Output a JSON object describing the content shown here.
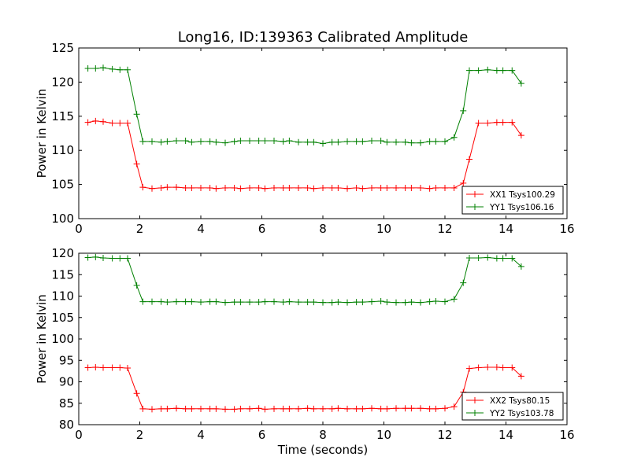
{
  "chart_data": [
    {
      "type": "line",
      "title": "Long16, ID:139363 Calibrated Amplitude",
      "xlabel": "",
      "ylabel": "Power in Kelvin",
      "xlim": [
        0,
        16
      ],
      "ylim": [
        100,
        125
      ],
      "xticks": [
        0,
        2,
        4,
        6,
        8,
        10,
        12,
        14,
        16
      ],
      "yticks": [
        100,
        105,
        110,
        115,
        120,
        125
      ],
      "legend_position": "lower-right",
      "x": [
        0.3,
        0.55,
        0.8,
        1.1,
        1.35,
        1.6,
        1.9,
        2.1,
        2.4,
        2.7,
        2.9,
        3.2,
        3.5,
        3.7,
        4.0,
        4.3,
        4.5,
        4.8,
        5.1,
        5.3,
        5.6,
        5.9,
        6.1,
        6.4,
        6.7,
        6.9,
        7.2,
        7.5,
        7.7,
        8.0,
        8.3,
        8.5,
        8.8,
        9.1,
        9.3,
        9.6,
        9.9,
        10.1,
        10.4,
        10.7,
        10.9,
        11.2,
        11.5,
        11.7,
        12.0,
        12.3,
        12.6,
        12.8,
        13.1,
        13.4,
        13.7,
        13.9,
        14.2,
        14.5
      ],
      "series": [
        {
          "name": "XX1 Tsys100.29",
          "color": "#ff0000",
          "values": [
            114.1,
            114.3,
            114.2,
            114.0,
            114.0,
            114.0,
            108.0,
            104.6,
            104.4,
            104.5,
            104.6,
            104.6,
            104.5,
            104.5,
            104.5,
            104.5,
            104.4,
            104.5,
            104.5,
            104.4,
            104.5,
            104.5,
            104.4,
            104.5,
            104.5,
            104.5,
            104.5,
            104.5,
            104.4,
            104.5,
            104.5,
            104.5,
            104.4,
            104.5,
            104.4,
            104.5,
            104.5,
            104.5,
            104.5,
            104.5,
            104.5,
            104.5,
            104.4,
            104.5,
            104.5,
            104.5,
            105.2,
            108.7,
            114.0,
            114.0,
            114.1,
            114.1,
            114.1,
            112.2
          ]
        },
        {
          "name": "YY1 Tsys106.16",
          "color": "#008000",
          "values": [
            122.0,
            122.0,
            122.1,
            121.9,
            121.8,
            121.8,
            115.3,
            111.3,
            111.3,
            111.2,
            111.3,
            111.4,
            111.4,
            111.2,
            111.3,
            111.3,
            111.2,
            111.1,
            111.3,
            111.4,
            111.4,
            111.4,
            111.4,
            111.4,
            111.3,
            111.4,
            111.2,
            111.2,
            111.2,
            111.0,
            111.2,
            111.2,
            111.3,
            111.3,
            111.3,
            111.4,
            111.4,
            111.2,
            111.2,
            111.2,
            111.1,
            111.1,
            111.3,
            111.3,
            111.3,
            111.9,
            115.8,
            121.7,
            121.7,
            121.8,
            121.7,
            121.7,
            121.7,
            119.8
          ]
        }
      ]
    },
    {
      "type": "line",
      "title": "",
      "xlabel": "Time (seconds)",
      "ylabel": "Power in Kelvin",
      "xlim": [
        0,
        16
      ],
      "ylim": [
        80,
        120
      ],
      "xticks": [
        0,
        2,
        4,
        6,
        8,
        10,
        12,
        14,
        16
      ],
      "yticks": [
        80,
        85,
        90,
        95,
        100,
        105,
        110,
        115,
        120
      ],
      "legend_position": "lower-right",
      "x": [
        0.3,
        0.55,
        0.8,
        1.1,
        1.35,
        1.6,
        1.9,
        2.1,
        2.4,
        2.7,
        2.9,
        3.2,
        3.5,
        3.7,
        4.0,
        4.3,
        4.5,
        4.8,
        5.1,
        5.3,
        5.6,
        5.9,
        6.1,
        6.4,
        6.7,
        6.9,
        7.2,
        7.5,
        7.7,
        8.0,
        8.3,
        8.5,
        8.8,
        9.1,
        9.3,
        9.6,
        9.9,
        10.1,
        10.4,
        10.7,
        10.9,
        11.2,
        11.5,
        11.7,
        12.0,
        12.3,
        12.6,
        12.8,
        13.1,
        13.4,
        13.7,
        13.9,
        14.2,
        14.5
      ],
      "series": [
        {
          "name": "XX2 Tsys80.15",
          "color": "#ff0000",
          "values": [
            93.3,
            93.4,
            93.3,
            93.3,
            93.3,
            93.2,
            87.3,
            83.7,
            83.6,
            83.7,
            83.7,
            83.8,
            83.7,
            83.7,
            83.7,
            83.7,
            83.7,
            83.6,
            83.6,
            83.7,
            83.7,
            83.8,
            83.6,
            83.7,
            83.7,
            83.7,
            83.7,
            83.8,
            83.7,
            83.7,
            83.7,
            83.8,
            83.7,
            83.7,
            83.7,
            83.8,
            83.7,
            83.7,
            83.8,
            83.8,
            83.8,
            83.8,
            83.7,
            83.7,
            83.8,
            84.2,
            87.6,
            93.1,
            93.3,
            93.4,
            93.4,
            93.3,
            93.3,
            91.3
          ]
        },
        {
          "name": "YY2 Tsys103.78",
          "color": "#008000",
          "values": [
            119.0,
            119.1,
            118.9,
            118.8,
            118.8,
            118.8,
            112.5,
            108.7,
            108.7,
            108.7,
            108.6,
            108.7,
            108.7,
            108.7,
            108.6,
            108.7,
            108.7,
            108.5,
            108.6,
            108.6,
            108.6,
            108.6,
            108.7,
            108.7,
            108.6,
            108.7,
            108.6,
            108.6,
            108.6,
            108.5,
            108.5,
            108.6,
            108.5,
            108.6,
            108.6,
            108.7,
            108.8,
            108.6,
            108.5,
            108.5,
            108.6,
            108.5,
            108.7,
            108.8,
            108.7,
            109.3,
            113.1,
            118.9,
            118.9,
            119.0,
            118.8,
            118.8,
            118.8,
            116.9
          ]
        }
      ]
    }
  ]
}
